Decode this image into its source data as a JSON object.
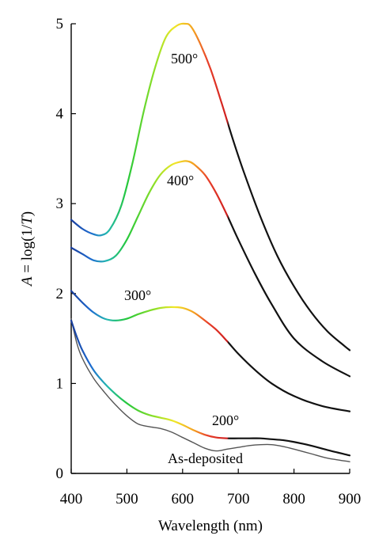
{
  "chart_data": {
    "type": "line",
    "xlabel": "Wavelength (nm)",
    "ylabel_italic": "A",
    "ylabel_eq": " = log(1/",
    "ylabel_italic2": "T",
    "ylabel_close": ")",
    "xlim": [
      400,
      900
    ],
    "ylim": [
      0,
      5
    ],
    "xticks": [
      "400",
      "500",
      "600",
      "700",
      "800",
      "900"
    ],
    "yticks": [
      "0",
      "1",
      "2",
      "3",
      "4",
      "5"
    ],
    "grid": false,
    "series": [
      {
        "name": "500°",
        "x": [
          400,
          420,
          440,
          455,
          470,
          490,
          510,
          530,
          550,
          570,
          590,
          605,
          615,
          630,
          650,
          670,
          690,
          710,
          740,
          770,
          800,
          830,
          860,
          890,
          900
        ],
        "y": [
          2.82,
          2.72,
          2.66,
          2.65,
          2.72,
          2.98,
          3.45,
          4.02,
          4.5,
          4.85,
          4.98,
          5.0,
          4.97,
          4.8,
          4.5,
          4.12,
          3.72,
          3.35,
          2.85,
          2.42,
          2.08,
          1.8,
          1.58,
          1.42,
          1.37
        ]
      },
      {
        "name": "400°",
        "x": [
          400,
          420,
          440,
          460,
          480,
          500,
          520,
          540,
          560,
          580,
          600,
          610,
          620,
          640,
          660,
          680,
          700,
          730,
          760,
          800,
          850,
          900
        ],
        "y": [
          2.51,
          2.44,
          2.37,
          2.36,
          2.42,
          2.6,
          2.86,
          3.12,
          3.32,
          3.43,
          3.47,
          3.47,
          3.44,
          3.32,
          3.12,
          2.87,
          2.6,
          2.22,
          1.88,
          1.5,
          1.25,
          1.08
        ]
      },
      {
        "name": "300°",
        "x": [
          400,
          420,
          440,
          460,
          480,
          500,
          520,
          540,
          560,
          580,
          600,
          620,
          640,
          660,
          680,
          700,
          730,
          760,
          800,
          850,
          900
        ],
        "y": [
          2.03,
          1.9,
          1.79,
          1.72,
          1.7,
          1.72,
          1.77,
          1.81,
          1.84,
          1.85,
          1.84,
          1.79,
          1.7,
          1.6,
          1.47,
          1.33,
          1.15,
          1.0,
          0.86,
          0.75,
          0.69
        ]
      },
      {
        "name": "200°",
        "x": [
          400,
          410,
          420,
          440,
          460,
          480,
          500,
          520,
          540,
          560,
          580,
          600,
          620,
          640,
          660,
          680,
          700,
          720,
          740,
          760,
          780,
          800,
          830,
          860,
          900
        ],
        "y": [
          1.7,
          1.52,
          1.37,
          1.15,
          1.0,
          0.88,
          0.78,
          0.7,
          0.65,
          0.62,
          0.59,
          0.54,
          0.48,
          0.43,
          0.4,
          0.39,
          0.39,
          0.39,
          0.39,
          0.38,
          0.37,
          0.35,
          0.31,
          0.26,
          0.2
        ]
      },
      {
        "name": "As-deposited",
        "x": [
          400,
          410,
          420,
          440,
          460,
          480,
          500,
          520,
          540,
          560,
          580,
          600,
          620,
          640,
          660,
          680,
          700,
          720,
          740,
          760,
          780,
          800,
          830,
          860,
          900
        ],
        "y": [
          1.72,
          1.45,
          1.28,
          1.06,
          0.9,
          0.76,
          0.64,
          0.55,
          0.52,
          0.5,
          0.46,
          0.4,
          0.34,
          0.28,
          0.25,
          0.27,
          0.29,
          0.31,
          0.32,
          0.32,
          0.3,
          0.27,
          0.22,
          0.17,
          0.13
        ]
      }
    ],
    "colors": {
      "line_default": "#111111",
      "as_deposited": "#555555",
      "spectrum": [
        "#1a3e9c",
        "#1e6bd0",
        "#23b8b0",
        "#25c83a",
        "#8fe028",
        "#f0e828",
        "#f4a020",
        "#e8402a",
        "#cf1e1e"
      ]
    }
  }
}
